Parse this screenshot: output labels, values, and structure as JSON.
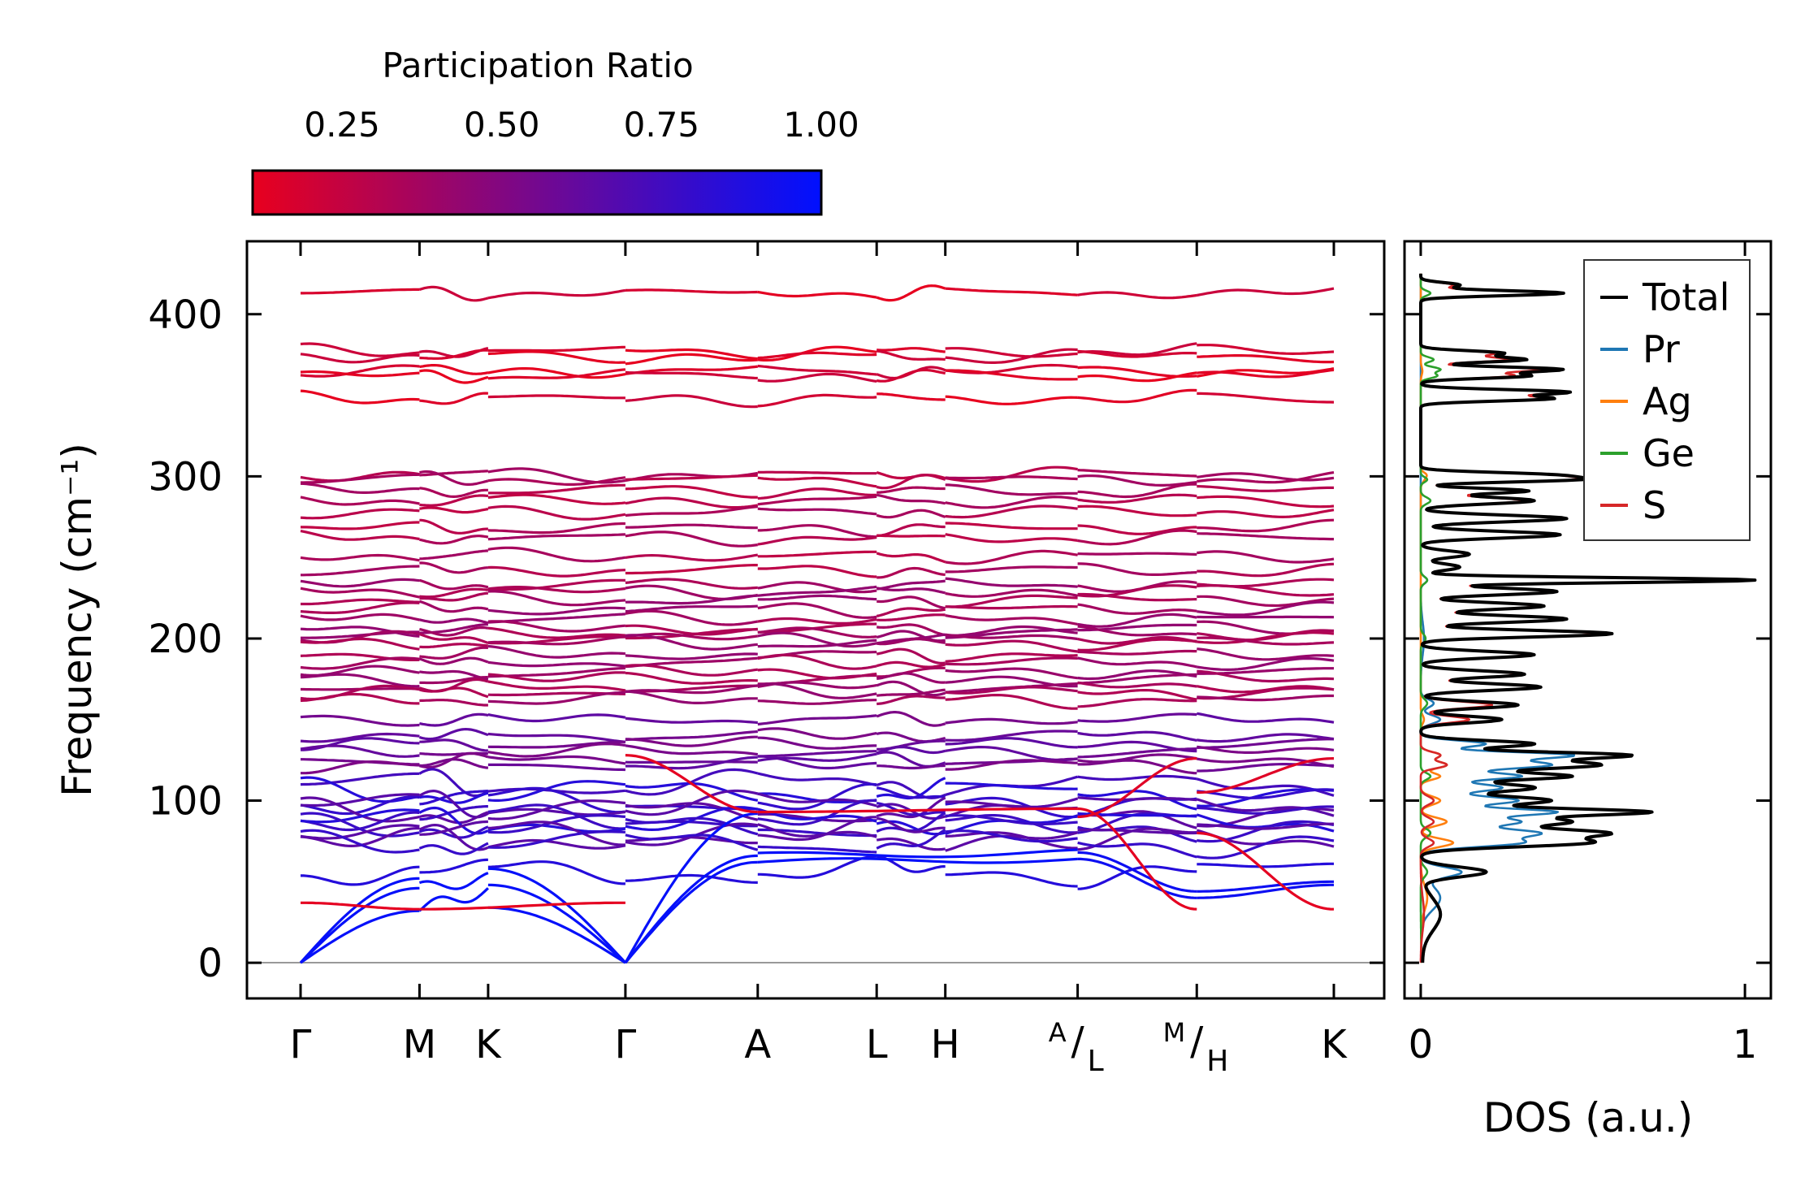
{
  "chart_data": [
    {
      "type": "line",
      "title": "",
      "xlabel": "",
      "ylabel": "Frequency (cm⁻¹)",
      "ylim": [
        -22,
        445
      ],
      "yticks": [
        0,
        100,
        200,
        300,
        400
      ],
      "high_symmetry_labels": [
        "Γ",
        "M",
        "K",
        "Γ",
        "A",
        "L",
        "H",
        "A/L",
        "M/H",
        "K"
      ],
      "path_positions": [
        0,
        0.577,
        0.91,
        1.576,
        2.218,
        2.795,
        3.128,
        3.77,
        4.348,
        5.013
      ],
      "colorbar": {
        "title": "Participation Ratio",
        "range": [
          0.11,
          1.0
        ],
        "ticks": [
          "0.25",
          "0.50",
          "0.75",
          "1.00"
        ],
        "low_color": "#e8001e",
        "high_color": "#0010ff"
      },
      "bands": {
        "upper_levels": [
          413,
          377,
          374,
          365,
          362,
          348,
          301,
          298,
          291,
          285,
          278,
          268,
          262,
          251,
          242,
          233,
          229,
          224,
          218,
          212,
          206,
          203,
          200,
          197,
          190,
          185,
          179,
          175,
          170,
          167,
          162,
          150,
          140,
          135,
          130,
          125,
          122
        ],
        "optical_levels": [
          110,
          105,
          100,
          97,
          93,
          90,
          87,
          84,
          80,
          77,
          74,
          56
        ]
      }
    },
    {
      "type": "line",
      "title": "",
      "xlabel": "DOS (a.u.)",
      "ylabel": "",
      "xlim": [
        -0.05,
        1.08
      ],
      "xticks": [
        "0",
        "1"
      ],
      "legend_position": "top-right",
      "series": [
        {
          "name": "Total",
          "color": "#000000"
        },
        {
          "name": "Pr",
          "color": "#1f77b4"
        },
        {
          "name": "Ag",
          "color": "#ff7f0e"
        },
        {
          "name": "Ge",
          "color": "#2ca02c"
        },
        {
          "name": "S",
          "color": "#d62728"
        }
      ],
      "peaks": {
        "Total": [
          [
            0,
            0.005,
            30
          ],
          [
            30,
            0.06,
            20
          ],
          [
            56,
            0.2,
            6
          ],
          [
            74,
            0.5,
            5
          ],
          [
            80,
            0.55,
            5
          ],
          [
            87,
            0.45,
            5
          ],
          [
            93,
            0.68,
            4
          ],
          [
            100,
            0.4,
            5
          ],
          [
            108,
            0.35,
            5
          ],
          [
            115,
            0.45,
            4
          ],
          [
            122,
            0.55,
            5
          ],
          [
            128,
            0.62,
            4
          ],
          [
            135,
            0.35,
            4
          ],
          [
            150,
            0.25,
            4
          ],
          [
            159,
            0.3,
            4
          ],
          [
            170,
            0.37,
            4
          ],
          [
            178,
            0.32,
            4
          ],
          [
            190,
            0.35,
            4
          ],
          [
            203,
            0.59,
            4
          ],
          [
            212,
            0.45,
            4
          ],
          [
            220,
            0.38,
            4
          ],
          [
            229,
            0.42,
            4
          ],
          [
            236,
            1.03,
            3
          ],
          [
            244,
            0.12,
            4
          ],
          [
            252,
            0.15,
            4
          ],
          [
            264,
            0.43,
            4
          ],
          [
            274,
            0.45,
            4
          ],
          [
            285,
            0.35,
            4
          ],
          [
            291,
            0.33,
            3
          ],
          [
            298,
            0.45,
            3
          ],
          [
            301,
            0.36,
            3
          ],
          [
            348,
            0.4,
            3
          ],
          [
            352,
            0.45,
            3
          ],
          [
            362,
            0.33,
            3
          ],
          [
            366,
            0.43,
            3
          ],
          [
            372,
            0.32,
            3
          ],
          [
            376,
            0.25,
            3
          ],
          [
            413,
            0.44,
            3
          ],
          [
            418,
            0.12,
            3
          ]
        ],
        "Pr": [
          [
            0,
            0.003,
            30
          ],
          [
            40,
            0.06,
            15
          ],
          [
            56,
            0.12,
            6
          ],
          [
            74,
            0.3,
            5
          ],
          [
            80,
            0.35,
            5
          ],
          [
            87,
            0.3,
            5
          ],
          [
            93,
            0.4,
            4
          ],
          [
            100,
            0.3,
            5
          ],
          [
            108,
            0.25,
            5
          ],
          [
            115,
            0.3,
            4
          ],
          [
            122,
            0.4,
            5
          ],
          [
            128,
            0.45,
            4
          ],
          [
            135,
            0.2,
            4
          ],
          [
            150,
            0.06,
            5
          ],
          [
            160,
            0.04,
            5
          ],
          [
            200,
            0.01,
            20
          ],
          [
            236,
            0.02,
            4
          ]
        ],
        "Ag": [
          [
            0,
            0.002,
            30
          ],
          [
            40,
            0.02,
            15
          ],
          [
            74,
            0.1,
            5
          ],
          [
            87,
            0.08,
            5
          ],
          [
            100,
            0.06,
            5
          ],
          [
            115,
            0.06,
            4
          ],
          [
            122,
            0.08,
            4
          ],
          [
            128,
            0.06,
            4
          ],
          [
            150,
            0.01,
            5
          ],
          [
            298,
            0.01,
            4
          ],
          [
            301,
            0.015,
            3
          ],
          [
            365,
            0.005,
            5
          ]
        ],
        "Ge": [
          [
            0,
            0.002,
            30
          ],
          [
            56,
            0.02,
            6
          ],
          [
            80,
            0.03,
            5
          ],
          [
            115,
            0.03,
            4
          ],
          [
            160,
            0.02,
            5
          ],
          [
            200,
            0.015,
            5
          ],
          [
            236,
            0.02,
            4
          ],
          [
            285,
            0.03,
            4
          ],
          [
            298,
            0.02,
            3
          ],
          [
            362,
            0.05,
            3
          ],
          [
            366,
            0.06,
            3
          ],
          [
            372,
            0.04,
            3
          ],
          [
            413,
            0.03,
            3
          ]
        ],
        "S": [
          [
            30,
            0.01,
            20
          ],
          [
            74,
            0.04,
            5
          ],
          [
            87,
            0.04,
            5
          ],
          [
            100,
            0.04,
            5
          ],
          [
            122,
            0.08,
            4
          ],
          [
            128,
            0.06,
            4
          ],
          [
            150,
            0.15,
            4
          ],
          [
            159,
            0.22,
            4
          ],
          [
            170,
            0.35,
            4
          ],
          [
            178,
            0.3,
            4
          ],
          [
            190,
            0.33,
            4
          ],
          [
            203,
            0.55,
            4
          ],
          [
            212,
            0.43,
            4
          ],
          [
            220,
            0.36,
            4
          ],
          [
            229,
            0.4,
            4
          ],
          [
            236,
            1.0,
            3
          ],
          [
            244,
            0.12,
            4
          ],
          [
            252,
            0.14,
            4
          ],
          [
            264,
            0.41,
            4
          ],
          [
            274,
            0.43,
            4
          ],
          [
            285,
            0.32,
            4
          ],
          [
            291,
            0.31,
            3
          ],
          [
            298,
            0.43,
            3
          ],
          [
            301,
            0.35,
            3
          ],
          [
            348,
            0.38,
            3
          ],
          [
            352,
            0.43,
            3
          ],
          [
            362,
            0.28,
            3
          ],
          [
            366,
            0.37,
            3
          ],
          [
            372,
            0.27,
            3
          ],
          [
            376,
            0.22,
            3
          ],
          [
            413,
            0.41,
            3
          ],
          [
            418,
            0.1,
            3
          ]
        ]
      }
    }
  ]
}
